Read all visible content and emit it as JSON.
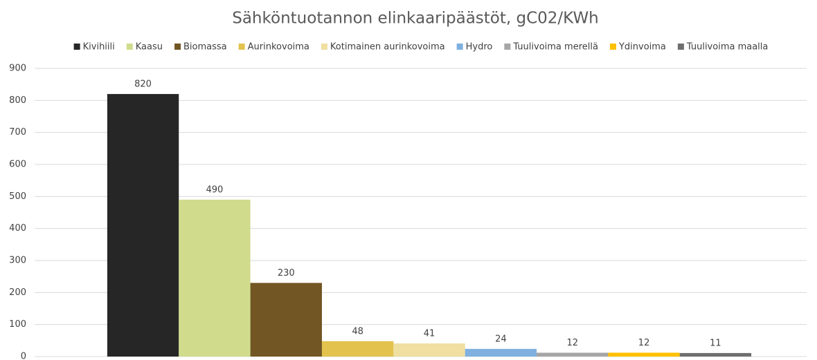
{
  "chart_data": {
    "type": "bar",
    "title": "Sähköntuotannon elinkaaripäästöt, gC02/KWh",
    "categories": [
      null
    ],
    "series": [
      {
        "name": "Kivihiili",
        "color": "#262626",
        "values": [
          820
        ]
      },
      {
        "name": "Kaasu",
        "color": "#d0dc8c",
        "values": [
          490
        ]
      },
      {
        "name": "Biomassa",
        "color": "#725623",
        "values": [
          230
        ]
      },
      {
        "name": "Aurinkovoima",
        "color": "#e3c24e",
        "values": [
          48
        ]
      },
      {
        "name": "Kotimainen aurinkovoima",
        "color": "#efdfa0",
        "values": [
          41
        ]
      },
      {
        "name": "Hydro",
        "color": "#7fb0e0",
        "values": [
          24
        ]
      },
      {
        "name": "Tuulivoima merellä",
        "color": "#a6a6a6",
        "values": [
          12
        ]
      },
      {
        "name": "Ydinvoima",
        "color": "#ffc000",
        "values": [
          12
        ]
      },
      {
        "name": "Tuulivoima maalla",
        "color": "#6f6f6f",
        "values": [
          11
        ]
      }
    ],
    "ylim": [
      0,
      900
    ],
    "yticks": [
      0,
      100,
      200,
      300,
      400,
      500,
      600,
      700,
      800,
      900
    ],
    "grid": true,
    "legend": "top"
  }
}
